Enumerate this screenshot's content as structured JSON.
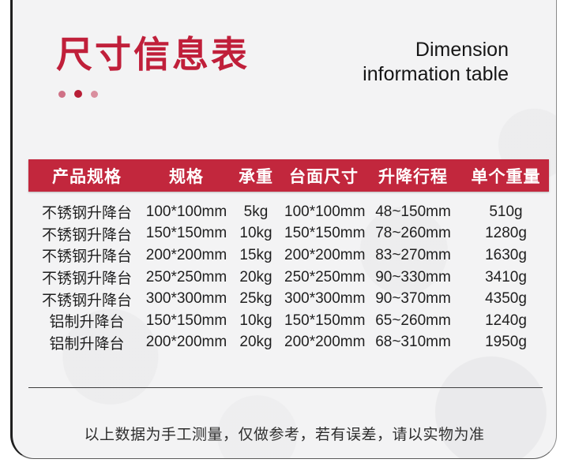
{
  "header": {
    "title_cn": "尺寸信息表",
    "title_en_line1": "Dimension",
    "title_en_line2": "information table"
  },
  "table": {
    "headers": [
      "产品规格",
      "规格",
      "承重",
      "台面尺寸",
      "升降行程",
      "单个重量"
    ],
    "rows": [
      [
        "不锈钢升降台",
        "100*100mm",
        "5kg",
        "100*100mm",
        "48~150mm",
        "510g"
      ],
      [
        "不锈钢升降台",
        "150*150mm",
        "10kg",
        "150*150mm",
        "78~260mm",
        "1280g"
      ],
      [
        "不锈钢升降台",
        "200*200mm",
        "15kg",
        "200*200mm",
        "83~270mm",
        "1630g"
      ],
      [
        "不锈钢升降台",
        "250*250mm",
        "20kg",
        "250*250mm",
        "90~330mm",
        "3410g"
      ],
      [
        "不锈钢升降台",
        "300*300mm",
        "25kg",
        "300*300mm",
        "90~370mm",
        "4350g"
      ],
      [
        "铝制升降台",
        "150*150mm",
        "10kg",
        "150*150mm",
        "65~260mm",
        "1240g"
      ],
      [
        "铝制升降台",
        "200*200mm",
        "20kg",
        "200*200mm",
        "68~310mm",
        "1950g"
      ]
    ]
  },
  "footer": {
    "note": "以上数据为手工测量，仅做参考，若有误差，请以实物为准"
  },
  "colors": {
    "accent_red": "#c2273d",
    "title_red": "#c01f3a"
  }
}
